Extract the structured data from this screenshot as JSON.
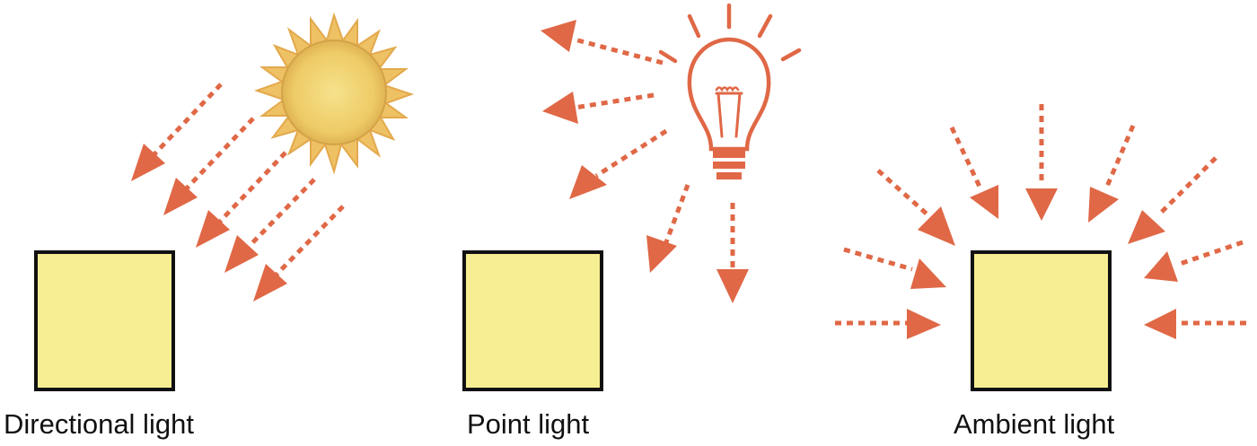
{
  "panels": [
    {
      "label": "Directional light",
      "source_icon": "sun-icon"
    },
    {
      "label": "Point light",
      "source_icon": "light-bulb-icon"
    },
    {
      "label": "Ambient light",
      "source_icon": "none"
    }
  ],
  "colors": {
    "arrow": "#e06846",
    "object_fill": "#f7ee93",
    "object_stroke": "#111111",
    "sun_core": "#f0cf6a",
    "sun_rays": "#e9b84f",
    "bulb": "#e06846",
    "text": "#111111"
  }
}
